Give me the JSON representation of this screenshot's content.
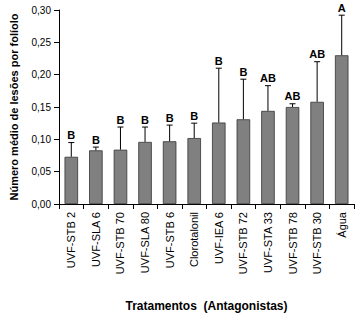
{
  "chart_data": {
    "type": "bar",
    "x_label": "Tratamentos  (Antagonistas)",
    "y_label": "Número médio de lesões por folíolo",
    "categories": [
      "UVF-STB 2",
      "UVF-SLA 6",
      "UVF-STB 70",
      "UVF-SLA 80",
      "UVF-STB 6",
      "Clorotalonil",
      "UVF-IEA 6",
      "UVF-STB 72",
      "UVF-STA 33",
      "UVF-STB 78",
      "UVF-STB 30",
      "Água"
    ],
    "values": [
      0.073,
      0.083,
      0.084,
      0.096,
      0.097,
      0.102,
      0.126,
      0.131,
      0.144,
      0.15,
      0.158,
      0.23
    ],
    "errors": [
      0.022,
      0.005,
      0.035,
      0.023,
      0.025,
      0.023,
      0.084,
      0.062,
      0.039,
      0.005,
      0.062,
      0.062
    ],
    "annotations": [
      "B",
      "B",
      "B",
      "B",
      "B",
      "B",
      "B",
      "B",
      "AB",
      "AB",
      "AB",
      "A"
    ],
    "color": "#808080",
    "ylim": [
      0,
      0.3
    ],
    "yticks": [
      {
        "value": 0,
        "label": "0,00"
      },
      {
        "value": 0.05,
        "label": "0,05"
      },
      {
        "value": 0.1,
        "label": "0,10"
      },
      {
        "value": 0.15,
        "label": "0,15"
      },
      {
        "value": 0.2,
        "label": "0,20"
      },
      {
        "value": 0.25,
        "label": "0,25"
      },
      {
        "value": 0.3,
        "label": "0,30"
      }
    ],
    "grid": false
  }
}
